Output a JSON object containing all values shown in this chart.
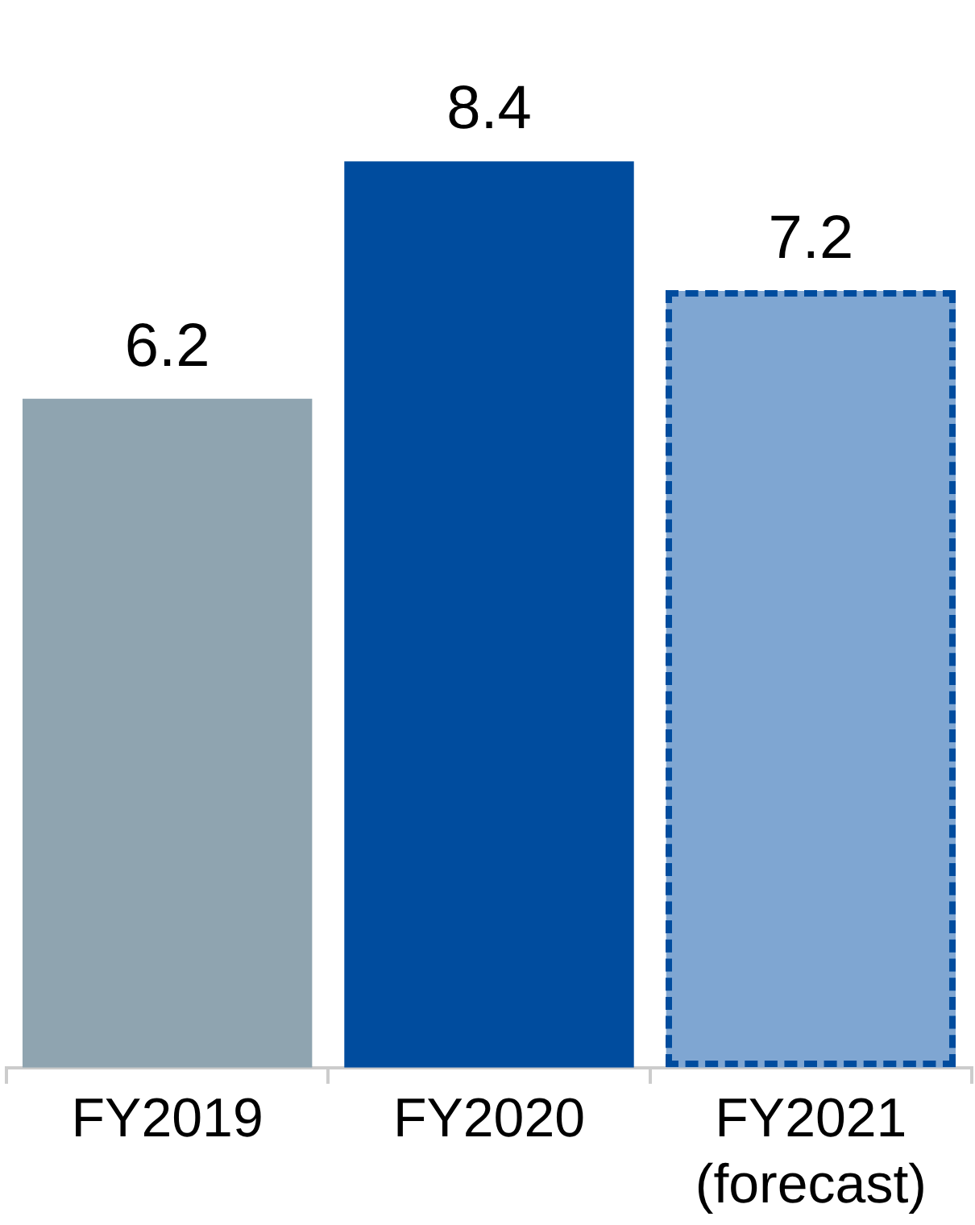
{
  "chart_data": {
    "type": "bar",
    "categories": [
      "FY2019",
      "FY2020",
      "FY2021 (forecast)"
    ],
    "stacked": true,
    "data_labels": true,
    "tick_labels": "x",
    "grid": false,
    "legend": false,
    "series": [
      {
        "colors": [
          "#8fa4b0",
          "#004c9e",
          null
        ],
        "values": [
          6.2,
          8.4,
          null
        ]
      },
      {
        "color": "#7fa6d2",
        "values": [
          null,
          null,
          7.2
        ],
        "line_style": "dashed"
      }
    ]
  }
}
